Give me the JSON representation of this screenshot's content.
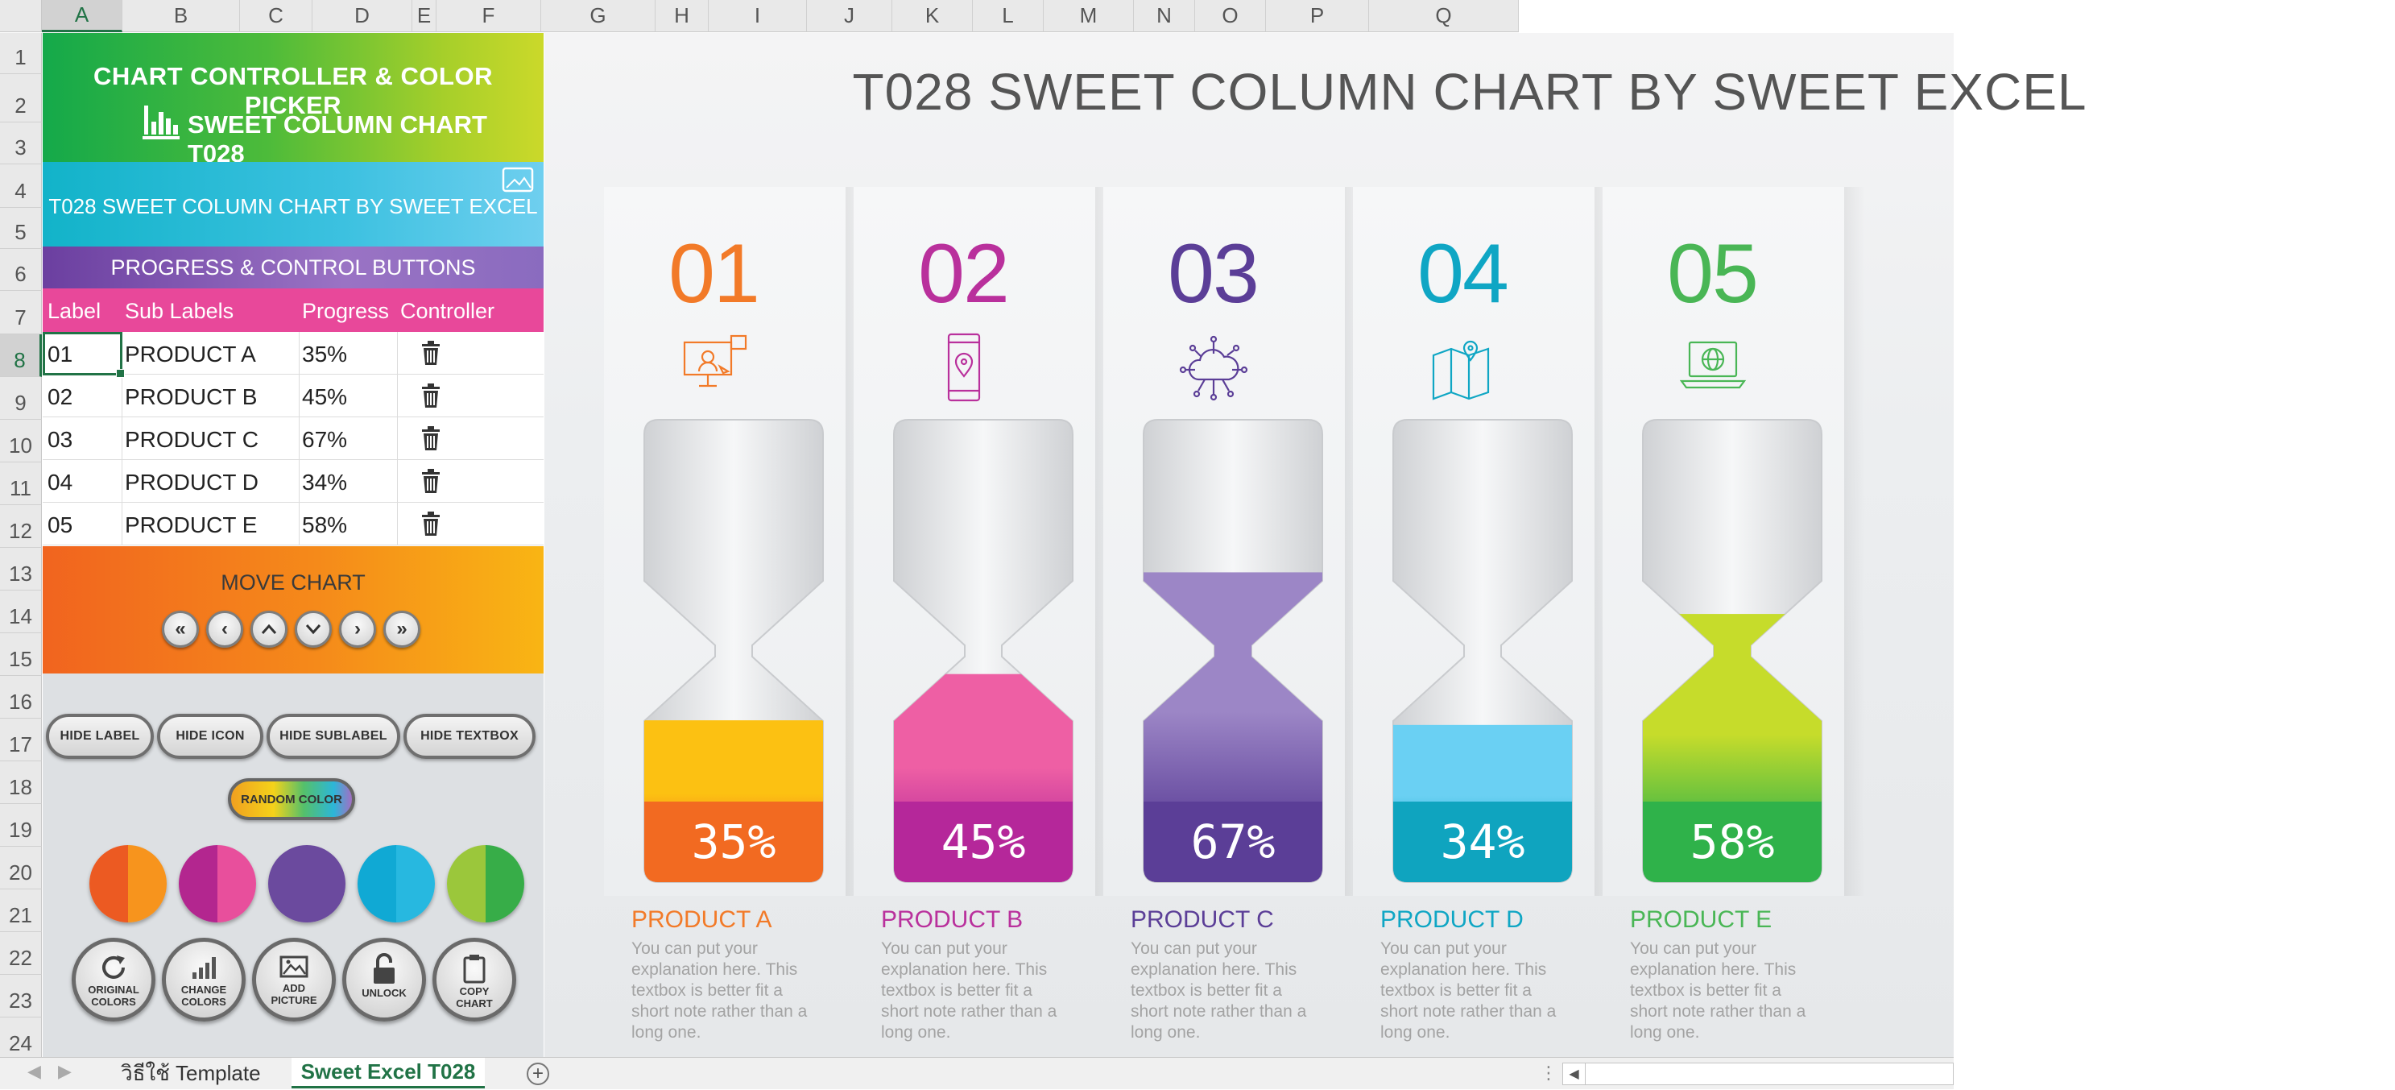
{
  "sheet": {
    "columns": [
      "A",
      "B",
      "C",
      "D",
      "E",
      "F",
      "G",
      "H",
      "I",
      "J",
      "K",
      "L",
      "M",
      "N",
      "O",
      "P",
      "Q"
    ],
    "rows": [
      "1",
      "2",
      "3",
      "4",
      "5",
      "6",
      "7",
      "8",
      "9",
      "10",
      "11",
      "12",
      "13",
      "14",
      "15",
      "16",
      "17",
      "18",
      "19",
      "20",
      "21",
      "22",
      "23",
      "24"
    ],
    "selected_column": "A",
    "selected_row": "8"
  },
  "panel": {
    "title_line1": "CHART CONTROLLER & COLOR PICKER",
    "title_line2": "SWEET COLUMN CHART T028",
    "subtitle": "T028 SWEET COLUMN CHART BY SWEET EXCEL",
    "progress_header": "PROGRESS & CONTROL BUTTONS",
    "table_headers": {
      "label": "Label",
      "sub_labels": "Sub Labels",
      "progress": "Progress",
      "controller": "Controller"
    },
    "table_rows": [
      {
        "label": "01",
        "sub": "PRODUCT A",
        "progress": "35%"
      },
      {
        "label": "02",
        "sub": "PRODUCT B",
        "progress": "45%"
      },
      {
        "label": "03",
        "sub": "PRODUCT C",
        "progress": "67%"
      },
      {
        "label": "04",
        "sub": "PRODUCT D",
        "progress": "34%"
      },
      {
        "label": "05",
        "sub": "PRODUCT E",
        "progress": "58%"
      }
    ],
    "move_chart_label": "MOVE CHART",
    "hide_buttons": {
      "hide_label": "HIDE LABEL",
      "hide_icon": "HIDE ICON",
      "hide_sublabel": "HIDE SUBLABEL",
      "hide_textbox": "HIDE TEXTBOX"
    },
    "random_color": "RANDOM COLOR",
    "swatches": [
      {
        "left": "#ec5a22",
        "right": "#f7941d"
      },
      {
        "left": "#b3268f",
        "right": "#e84f9c"
      },
      {
        "left": "#6b4a9e",
        "right": "#6b4a9e"
      },
      {
        "left": "#10a9d4",
        "right": "#27b8e0"
      },
      {
        "left": "#9bc73b",
        "right": "#37ad48"
      }
    ],
    "control_buttons": {
      "original_colors": [
        "ORIGINAL",
        "COLORS"
      ],
      "change_colors": [
        "CHANGE",
        "COLORS"
      ],
      "add_picture": [
        "ADD",
        "PICTURE"
      ],
      "unlock": [
        "UNLOCK"
      ],
      "copy_chart": [
        "COPY",
        "CHART"
      ]
    }
  },
  "chart": {
    "title": "T028 SWEET COLUMN CHART BY SWEET EXCEL"
  },
  "chart_data": {
    "type": "bar",
    "title": "T028 SWEET COLUMN CHART BY SWEET EXCEL",
    "categories": [
      "01",
      "02",
      "03",
      "04",
      "05"
    ],
    "sub_labels": [
      "PRODUCT A",
      "PRODUCT B",
      "PRODUCT C",
      "PRODUCT D",
      "PRODUCT E"
    ],
    "values": [
      35,
      45,
      67,
      34,
      58
    ],
    "value_labels": [
      "35%",
      "45%",
      "67%",
      "34%",
      "58%"
    ],
    "ylim": [
      0,
      100
    ],
    "description": "You can put your explanation here. This textbox is better fit a short note rather than a long one.",
    "colors": [
      {
        "top": "#fcc112",
        "bottom": "#f26a21",
        "num": "#f27a28"
      },
      {
        "top": "#ee5fa4",
        "bottom": "#b5279a",
        "num": "#b9309c"
      },
      {
        "top": "#9c86c6",
        "bottom": "#5b3e97",
        "num": "#5b3e97"
      },
      {
        "top": "#6ad0f3",
        "bottom": "#0fa4bf",
        "num": "#0fa6c4"
      },
      {
        "top": "#c6dc2b",
        "bottom": "#2fb24a",
        "num": "#49b655"
      }
    ],
    "icons": [
      "presentation-icon",
      "mobile-location-icon",
      "cloud-network-icon",
      "map-pin-icon",
      "laptop-globe-icon"
    ]
  },
  "tabs": {
    "tab1": "วิธีใช้ Template",
    "tab2": "Sweet Excel T028",
    "add": "+"
  }
}
